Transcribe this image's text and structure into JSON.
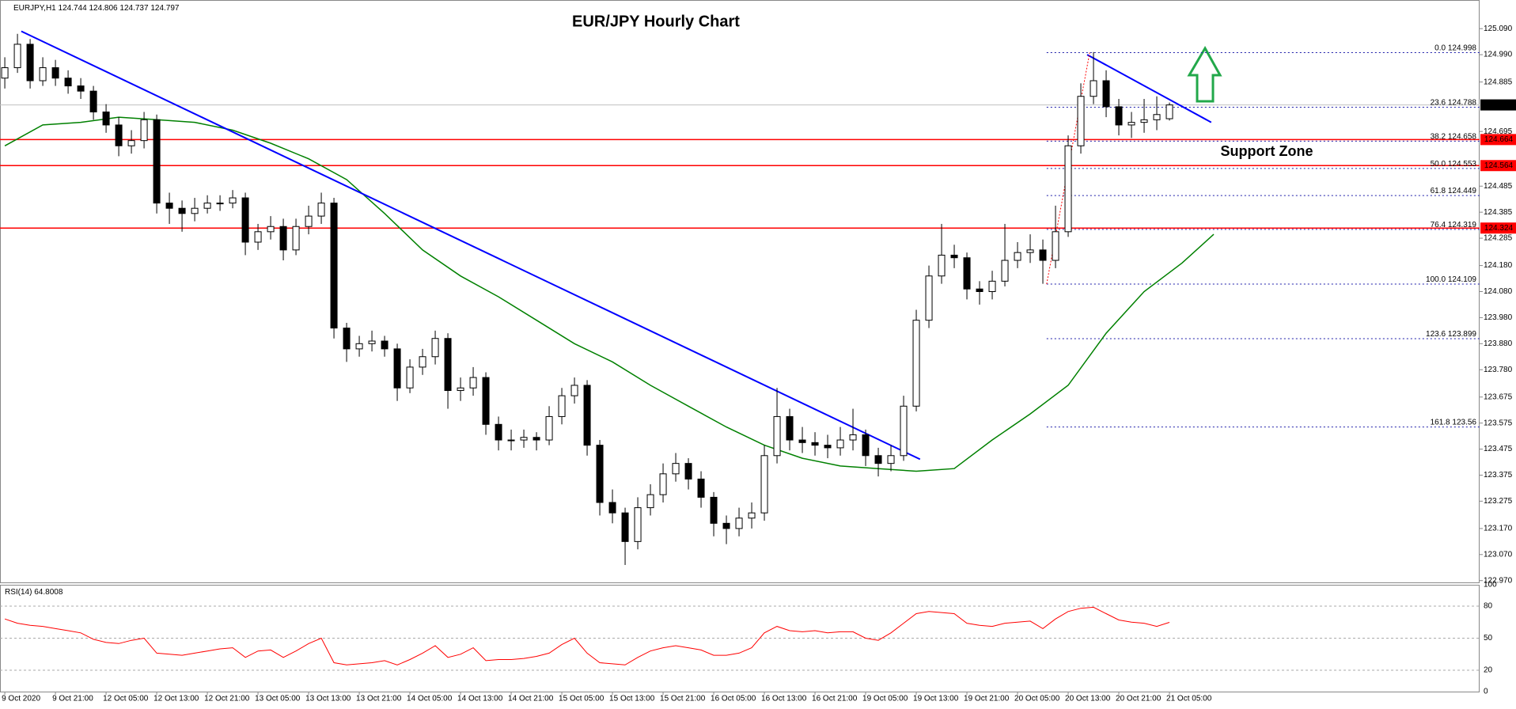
{
  "chart_data": {
    "type": "candlestick",
    "title": "EUR/JPY Hourly Chart",
    "symbol": "EURJPY,H1",
    "xlim": [
      -0.38,
      116.5
    ],
    "xticks": [
      {
        "value": 0,
        "label": "9 Oct 2020"
      },
      {
        "value": 4,
        "label": "9 Oct 21:00"
      },
      {
        "value": 8,
        "label": "12 Oct 05:00"
      },
      {
        "value": 12,
        "label": "12 Oct 13:00"
      },
      {
        "value": 16,
        "label": "12 Oct 21:00"
      },
      {
        "value": 20,
        "label": "13 Oct 05:00"
      },
      {
        "value": 24,
        "label": "13 Oct 13:00"
      },
      {
        "value": 28,
        "label": "13 Oct 21:00"
      },
      {
        "value": 32,
        "label": "14 Oct 05:00"
      },
      {
        "value": 36,
        "label": "14 Oct 13:00"
      },
      {
        "value": 40,
        "label": "14 Oct 21:00"
      },
      {
        "value": 44,
        "label": "15 Oct 05:00"
      },
      {
        "value": 48,
        "label": "15 Oct 13:00"
      },
      {
        "value": 52,
        "label": "15 Oct 21:00"
      },
      {
        "value": 56,
        "label": "16 Oct 05:00"
      },
      {
        "value": 60,
        "label": "16 Oct 13:00"
      },
      {
        "value": 64,
        "label": "16 Oct 21:00"
      },
      {
        "value": 68,
        "label": "19 Oct 05:00"
      },
      {
        "value": 72,
        "label": "19 Oct 13:00"
      },
      {
        "value": 76,
        "label": "19 Oct 21:00"
      },
      {
        "value": 80,
        "label": "20 Oct 05:00"
      },
      {
        "value": 84,
        "label": "20 Oct 13:00"
      },
      {
        "value": 88,
        "label": "20 Oct 21:00"
      },
      {
        "value": 92,
        "label": "21 Oct 05:00"
      }
    ],
    "ylim": [
      122.96,
      125.2
    ],
    "yticks": [
      {
        "value": 125.09,
        "label": "125.090"
      },
      {
        "value": 124.99,
        "label": "124.990"
      },
      124.885,
      124.695,
      124.485,
      124.385,
      124.285,
      {
        "value": 124.18,
        "label": "124.180"
      },
      {
        "value": 124.08,
        "label": "124.080"
      },
      {
        "value": 123.98,
        "label": "123.980"
      },
      {
        "value": 123.88,
        "label": "123.880"
      },
      {
        "value": 123.78,
        "label": "123.780"
      },
      123.675,
      123.575,
      123.475,
      123.375,
      123.275,
      {
        "value": 123.17,
        "label": "123.170"
      },
      {
        "value": 123.07,
        "label": "123.070"
      },
      {
        "value": 122.97,
        "label": "122.970"
      }
    ],
    "up_color": "#ffffff",
    "down_color": "#000000",
    "candles": [
      [
        124.9,
        124.98,
        124.86,
        124.94
      ],
      [
        124.94,
        125.07,
        124.92,
        125.03
      ],
      [
        125.03,
        125.05,
        124.86,
        124.89
      ],
      [
        124.89,
        124.98,
        124.87,
        124.94
      ],
      [
        124.94,
        124.97,
        124.87,
        124.9
      ],
      [
        124.9,
        124.93,
        124.84,
        124.87
      ],
      [
        124.87,
        124.9,
        124.82,
        124.85
      ],
      [
        124.85,
        124.87,
        124.74,
        124.77
      ],
      [
        124.77,
        124.8,
        124.69,
        124.72
      ],
      [
        124.72,
        124.75,
        124.6,
        124.64
      ],
      [
        124.64,
        124.7,
        124.61,
        124.66
      ],
      [
        124.66,
        124.77,
        124.63,
        124.74
      ],
      [
        124.74,
        124.76,
        124.38,
        124.42
      ],
      [
        124.42,
        124.46,
        124.34,
        124.4
      ],
      [
        124.4,
        124.43,
        124.31,
        124.38
      ],
      [
        124.38,
        124.44,
        124.35,
        124.4
      ],
      [
        124.4,
        124.45,
        124.38,
        124.42
      ],
      [
        124.42,
        124.45,
        124.39,
        124.42
      ],
      [
        124.42,
        124.47,
        124.4,
        124.44
      ],
      [
        124.44,
        124.46,
        124.22,
        124.27
      ],
      [
        124.27,
        124.34,
        124.24,
        124.31
      ],
      [
        124.31,
        124.37,
        124.28,
        124.33
      ],
      [
        124.33,
        124.36,
        124.2,
        124.24
      ],
      [
        124.24,
        124.36,
        124.22,
        124.33
      ],
      [
        124.33,
        124.41,
        124.3,
        124.37
      ],
      [
        124.37,
        124.46,
        124.34,
        124.42
      ],
      [
        124.42,
        124.44,
        123.9,
        123.94
      ],
      [
        123.94,
        123.96,
        123.81,
        123.86
      ],
      [
        123.86,
        123.91,
        123.83,
        123.88
      ],
      [
        123.88,
        123.93,
        123.85,
        123.89
      ],
      [
        123.89,
        123.91,
        123.83,
        123.86
      ],
      [
        123.86,
        123.88,
        123.66,
        123.71
      ],
      [
        123.71,
        123.82,
        123.69,
        123.79
      ],
      [
        123.79,
        123.86,
        123.76,
        123.83
      ],
      [
        123.83,
        123.93,
        123.8,
        123.9
      ],
      [
        123.9,
        123.92,
        123.63,
        123.7
      ],
      [
        123.7,
        123.75,
        123.66,
        123.71
      ],
      [
        123.71,
        123.79,
        123.68,
        123.75
      ],
      [
        123.75,
        123.77,
        123.53,
        123.57
      ],
      [
        123.57,
        123.6,
        123.47,
        123.51
      ],
      [
        123.51,
        123.55,
        123.47,
        123.51
      ],
      [
        123.51,
        123.55,
        123.48,
        123.52
      ],
      [
        123.52,
        123.54,
        123.47,
        123.51
      ],
      [
        123.51,
        123.64,
        123.49,
        123.6
      ],
      [
        123.6,
        123.71,
        123.57,
        123.68
      ],
      [
        123.68,
        123.75,
        123.65,
        123.72
      ],
      [
        123.72,
        123.74,
        123.45,
        123.49
      ],
      [
        123.49,
        123.51,
        123.22,
        123.27
      ],
      [
        123.27,
        123.32,
        123.19,
        123.23
      ],
      [
        123.23,
        123.25,
        123.03,
        123.12
      ],
      [
        123.12,
        123.29,
        123.09,
        123.25
      ],
      [
        123.25,
        123.34,
        123.22,
        123.3
      ],
      [
        123.3,
        123.42,
        123.27,
        123.38
      ],
      [
        123.38,
        123.46,
        123.35,
        123.42
      ],
      [
        123.42,
        123.44,
        123.32,
        123.36
      ],
      [
        123.36,
        123.39,
        123.25,
        123.29
      ],
      [
        123.29,
        123.31,
        123.14,
        123.19
      ],
      [
        123.19,
        123.22,
        123.11,
        123.17
      ],
      [
        123.17,
        123.25,
        123.14,
        123.21
      ],
      [
        123.21,
        123.27,
        123.17,
        123.23
      ],
      [
        123.23,
        123.49,
        123.2,
        123.45
      ],
      [
        123.45,
        123.71,
        123.42,
        123.6
      ],
      [
        123.6,
        123.63,
        123.47,
        123.51
      ],
      [
        123.51,
        123.56,
        123.46,
        123.5
      ],
      [
        123.5,
        123.54,
        123.45,
        123.49
      ],
      [
        123.49,
        123.53,
        123.44,
        123.48
      ],
      [
        123.48,
        123.56,
        123.45,
        123.51
      ],
      [
        123.51,
        123.63,
        123.47,
        123.53
      ],
      [
        123.53,
        123.55,
        123.41,
        123.45
      ],
      [
        123.45,
        123.48,
        123.37,
        123.42
      ],
      [
        123.42,
        123.49,
        123.39,
        123.45
      ],
      [
        123.45,
        123.68,
        123.43,
        123.64
      ],
      [
        123.64,
        124.01,
        123.62,
        123.97
      ],
      [
        123.97,
        124.18,
        123.94,
        124.14
      ],
      [
        124.14,
        124.34,
        124.11,
        124.22
      ],
      [
        124.22,
        124.26,
        124.17,
        124.21
      ],
      [
        124.21,
        124.23,
        124.05,
        124.09
      ],
      [
        124.09,
        124.12,
        124.03,
        124.08
      ],
      [
        124.08,
        124.16,
        124.05,
        124.12
      ],
      [
        124.12,
        124.34,
        124.1,
        124.2
      ],
      [
        124.2,
        124.27,
        124.17,
        124.23
      ],
      [
        124.23,
        124.3,
        124.19,
        124.24
      ],
      [
        124.24,
        124.28,
        124.11,
        124.2
      ],
      [
        124.2,
        124.41,
        124.17,
        124.31
      ],
      [
        124.31,
        124.68,
        124.29,
        124.64
      ],
      [
        124.64,
        124.88,
        124.61,
        124.83
      ],
      [
        124.83,
        125.0,
        124.8,
        124.89
      ],
      [
        124.89,
        124.93,
        124.75,
        124.79
      ],
      [
        124.79,
        124.82,
        124.68,
        124.72
      ],
      [
        124.72,
        124.77,
        124.67,
        124.73
      ],
      [
        124.73,
        124.82,
        124.69,
        124.74
      ],
      [
        124.74,
        124.83,
        124.7,
        124.76
      ],
      [
        124.744,
        124.806,
        124.737,
        124.797
      ]
    ],
    "moving_average": {
      "color": "#008000",
      "x": [
        0,
        3,
        6,
        9,
        12,
        15,
        18,
        21,
        24,
        27,
        30,
        33,
        36,
        39,
        42,
        45,
        48,
        51,
        54,
        57,
        60,
        63,
        66,
        69,
        72,
        75,
        78,
        81,
        84,
        87,
        90,
        93,
        95.5
      ],
      "values": [
        124.64,
        124.72,
        124.73,
        124.75,
        124.74,
        124.73,
        124.7,
        124.65,
        124.59,
        124.51,
        124.38,
        124.24,
        124.14,
        124.06,
        123.97,
        123.88,
        123.81,
        123.72,
        123.64,
        123.56,
        123.49,
        123.44,
        123.41,
        123.4,
        123.39,
        123.4,
        123.51,
        123.61,
        123.72,
        123.92,
        124.08,
        124.19,
        124.3
      ]
    },
    "trendlines": [
      {
        "color": "#0000ff",
        "dashed": false,
        "x": [
          1.3,
          72.3
        ],
        "values": [
          125.08,
          123.436
        ]
      },
      {
        "color": "#0000ff",
        "dashed": false,
        "x": [
          85.5,
          95.3
        ],
        "values": [
          124.99,
          124.73
        ]
      },
      {
        "color": "#ff0000",
        "dashed": true,
        "x": [
          82.3,
          85.7
        ],
        "values": [
          124.109,
          124.998
        ]
      }
    ],
    "levels": {
      "color": "#ff0000",
      "values": [
        124.664,
        124.564,
        124.324
      ]
    },
    "fib": {
      "color": "#1a1aa8",
      "x_start": 82.3,
      "levels": [
        "0.0",
        "23.6",
        "38.2",
        "50.0",
        "61.8",
        "76.4",
        "100.0",
        "123.6",
        "161.8"
      ],
      "values": [
        124.998,
        124.788,
        124.658,
        124.553,
        124.449,
        124.319,
        124.109,
        123.899,
        123.56
      ]
    },
    "annotation": "Support Zone",
    "annotation_color": "#22a84a",
    "rsi": {
      "name": "RSI(14)",
      "color": "#ff0000",
      "ylim": [
        0,
        100
      ],
      "yticks": [
        100,
        80,
        50,
        20,
        0
      ],
      "values": [
        68,
        64,
        62,
        61,
        59,
        57,
        55,
        49,
        46,
        45,
        48,
        50,
        36,
        35,
        34,
        36,
        38,
        40,
        41,
        32,
        38,
        39,
        32,
        38,
        45,
        50,
        27,
        25,
        26,
        27,
        29,
        25,
        30,
        36,
        43,
        32,
        35,
        41,
        29,
        30,
        30,
        31,
        33,
        36,
        44,
        50,
        36,
        27,
        26,
        25,
        32,
        38,
        41,
        43,
        41,
        39,
        34,
        34,
        36,
        41,
        55,
        61,
        57,
        56,
        57,
        55,
        56,
        56,
        50,
        48,
        55,
        64,
        73,
        75,
        74,
        73,
        64,
        62,
        61,
        64,
        65,
        66,
        59,
        68,
        75,
        78,
        79,
        73,
        67,
        65,
        64,
        61,
        64.8008
      ]
    }
  }
}
